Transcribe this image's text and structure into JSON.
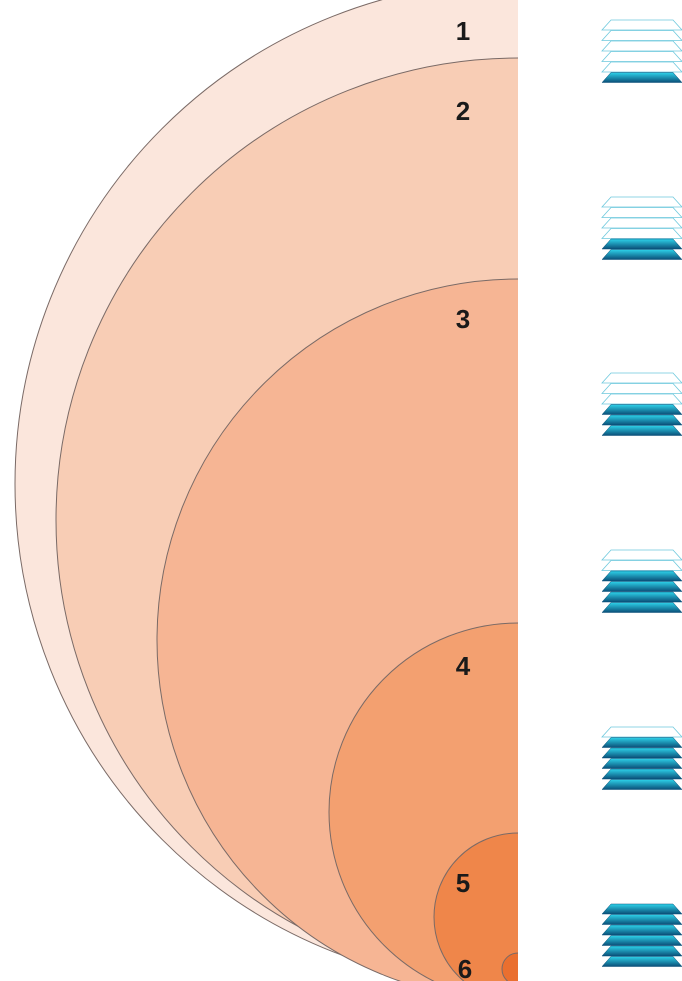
{
  "levels": [
    {
      "label": "1",
      "fill": "#fbe6dc",
      "filled_layers": 1
    },
    {
      "label": "2",
      "fill": "#f8cdb5",
      "filled_layers": 2
    },
    {
      "label": "3",
      "fill": "#f6b594",
      "filled_layers": 3
    },
    {
      "label": "4",
      "fill": "#f3a070",
      "filled_layers": 4
    },
    {
      "label": "5",
      "fill": "#ef864a",
      "filled_layers": 5
    },
    {
      "label": "6",
      "fill": "#ea6f2f",
      "filled_layers": 6
    }
  ],
  "icon": {
    "name": "stacked-layers-icon",
    "total_layers": 6,
    "filled_color_top": "#2ed3ea",
    "filled_color_bottom": "#0a4f78",
    "outline_color": "#6fc9dd"
  },
  "colors": {
    "circle_stroke": "#7a6a66",
    "label": "#1a1a1a"
  }
}
